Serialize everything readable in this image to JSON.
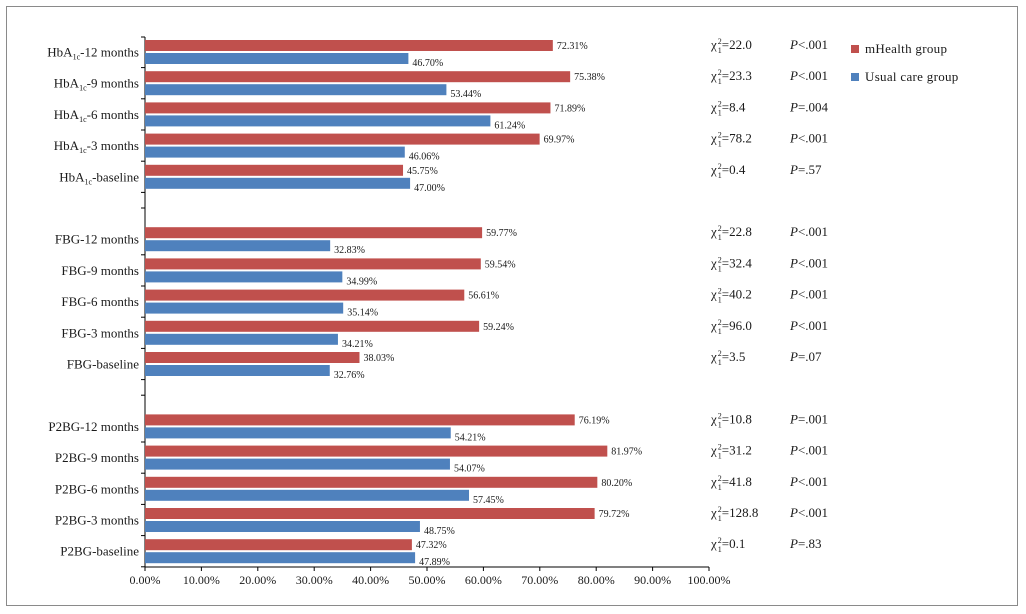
{
  "colors": {
    "mhealth": "#c0504d",
    "usual": "#4f81bd",
    "axis": "#000000"
  },
  "legend": [
    {
      "name": "mHealth group",
      "color": "#c0504d"
    },
    {
      "name": "Usual care group",
      "color": "#4f81bd"
    }
  ],
  "chart_data": {
    "type": "bar",
    "orientation": "horizontal",
    "xlim": [
      0,
      100
    ],
    "xticks": [
      "0.00%",
      "10.00%",
      "20.00%",
      "30.00%",
      "40.00%",
      "50.00%",
      "60.00%",
      "70.00%",
      "80.00%",
      "90.00%",
      "100.00%"
    ],
    "legend_position": "top-right",
    "grid": false,
    "groups": [
      {
        "rows": [
          {
            "prefix": "HbA",
            "sub": "1c",
            "suffix": "-12 months",
            "mhealth": 72.31,
            "usual": 46.7,
            "mhealth_label": "72.31%",
            "usual_label": "46.70%",
            "chi": "=22.0",
            "p_op": "<.001"
          },
          {
            "prefix": "HbA",
            "sub": "1c",
            "suffix": "-9 months",
            "mhealth": 75.38,
            "usual": 53.44,
            "mhealth_label": "75.38%",
            "usual_label": "53.44%",
            "chi": "=23.3",
            "p_op": "<.001"
          },
          {
            "prefix": "HbA",
            "sub": "1c",
            "suffix": "-6 months",
            "mhealth": 71.89,
            "usual": 61.24,
            "mhealth_label": "71.89%",
            "usual_label": "61.24%",
            "chi": "=8.4",
            "p_op": "=.004"
          },
          {
            "prefix": "HbA",
            "sub": "1c",
            "suffix": "-3 months",
            "mhealth": 69.97,
            "usual": 46.06,
            "mhealth_label": "69.97%",
            "usual_label": "46.06%",
            "chi": "=78.2",
            "p_op": "<.001"
          },
          {
            "prefix": "HbA",
            "sub": "1c",
            "suffix": "-baseline",
            "mhealth": 45.75,
            "usual": 47.0,
            "mhealth_label": "45.75%",
            "usual_label": "47.00%",
            "chi": "=0.4",
            "p_op": "=.57"
          }
        ]
      },
      {
        "rows": [
          {
            "prefix": "FBG-12 months",
            "sub": "",
            "suffix": "",
            "mhealth": 59.77,
            "usual": 32.83,
            "mhealth_label": "59.77%",
            "usual_label": "32.83%",
            "chi": "=22.8",
            "p_op": "<.001"
          },
          {
            "prefix": "FBG-9 months",
            "sub": "",
            "suffix": "",
            "mhealth": 59.54,
            "usual": 34.99,
            "mhealth_label": "59.54%",
            "usual_label": "34.99%",
            "chi": "=32.4",
            "p_op": "<.001"
          },
          {
            "prefix": "FBG-6 months",
            "sub": "",
            "suffix": "",
            "mhealth": 56.61,
            "usual": 35.14,
            "mhealth_label": "56.61%",
            "usual_label": "35.14%",
            "chi": "=40.2",
            "p_op": "<.001"
          },
          {
            "prefix": "FBG-3 months",
            "sub": "",
            "suffix": "",
            "mhealth": 59.24,
            "usual": 34.21,
            "mhealth_label": "59.24%",
            "usual_label": "34.21%",
            "chi": "=96.0",
            "p_op": "<.001"
          },
          {
            "prefix": "FBG-baseline",
            "sub": "",
            "suffix": "",
            "mhealth": 38.03,
            "usual": 32.76,
            "mhealth_label": "38.03%",
            "usual_label": "32.76%",
            "chi": "=3.5",
            "p_op": "=.07"
          }
        ]
      },
      {
        "rows": [
          {
            "prefix": "P2BG-12 months",
            "sub": "",
            "suffix": "",
            "mhealth": 76.19,
            "usual": 54.21,
            "mhealth_label": "76.19%",
            "usual_label": "54.21%",
            "chi": "=10.8",
            "p_op": "=.001"
          },
          {
            "prefix": "P2BG-9 months",
            "sub": "",
            "suffix": "",
            "mhealth": 81.97,
            "usual": 54.07,
            "mhealth_label": "81.97%",
            "usual_label": "54.07%",
            "chi": "=31.2",
            "p_op": "<.001"
          },
          {
            "prefix": "P2BG-6 months",
            "sub": "",
            "suffix": "",
            "mhealth": 80.2,
            "usual": 57.45,
            "mhealth_label": "80.20%",
            "usual_label": "57.45%",
            "chi": "=41.8",
            "p_op": "<.001"
          },
          {
            "prefix": "P2BG-3 months",
            "sub": "",
            "suffix": "",
            "mhealth": 79.72,
            "usual": 48.75,
            "mhealth_label": "79.72%",
            "usual_label": "48.75%",
            "chi": "=128.8",
            "p_op": "<.001"
          },
          {
            "prefix": "P2BG-baseline",
            "sub": "",
            "suffix": "",
            "mhealth": 47.32,
            "usual": 47.89,
            "mhealth_label": "47.32%",
            "usual_label": "47.89%",
            "chi": "=0.1",
            "p_op": "=.83"
          }
        ]
      }
    ]
  }
}
